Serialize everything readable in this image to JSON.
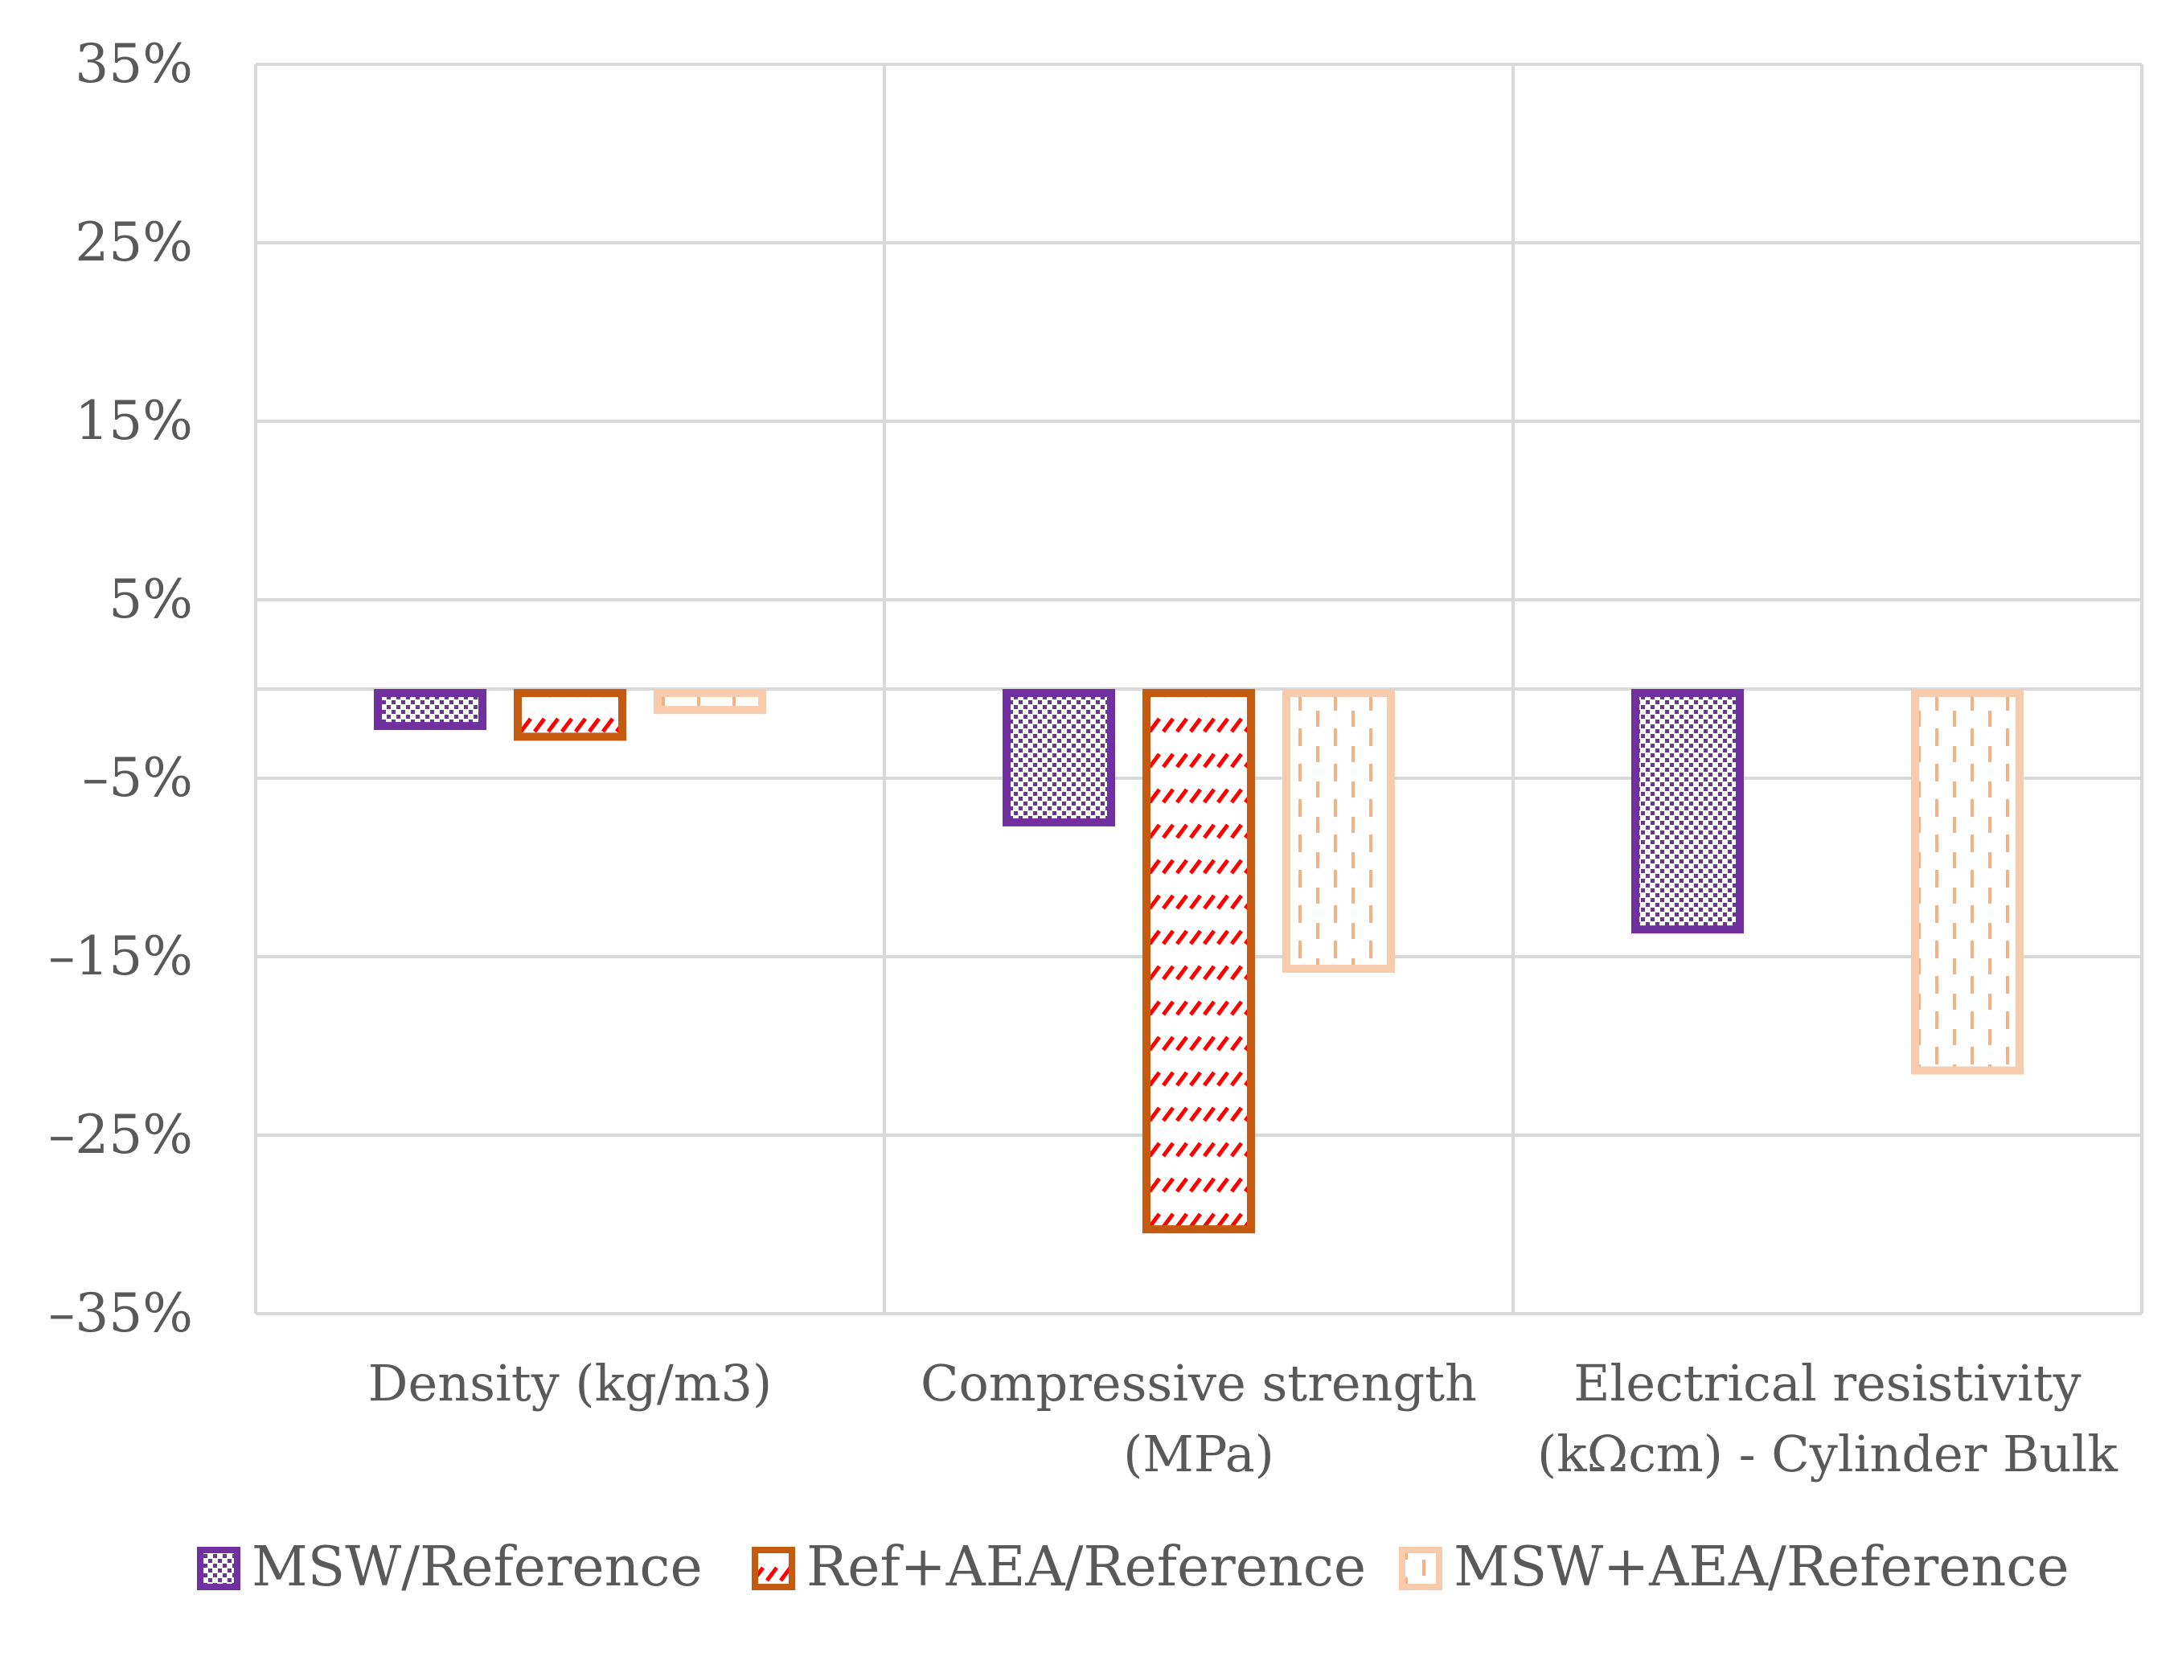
{
  "chart_data": {
    "type": "bar",
    "title": "",
    "xlabel": "",
    "ylabel": "",
    "ylim": [
      -35,
      35
    ],
    "yticks": [
      35,
      25,
      15,
      5,
      -5,
      -15,
      -25,
      -35
    ],
    "ytick_labels": [
      "35%",
      "25%",
      "15%",
      "5%",
      "–5%",
      "–15%",
      "–25%",
      "–35%"
    ],
    "grid": true,
    "legend_position": "bottom",
    "categories": [
      [
        "Density (kg/m3)"
      ],
      [
        "Compressive strength",
        "(MPa)"
      ],
      [
        "Electrical resistivity",
        "(kΩcm) - Cylinder Bulk"
      ]
    ],
    "series": [
      {
        "name": "MSW/Reference",
        "values": [
          -2.3,
          -7.7,
          -13.7
        ],
        "color": "#7030a0",
        "pattern": "dots"
      },
      {
        "name": "Ref+AEA/Reference",
        "values": [
          -2.9,
          -30.5,
          null
        ],
        "color": "#c55a11",
        "pattern": "diagonal-dash"
      },
      {
        "name": "MSW+AEA/Reference",
        "values": [
          -1.4,
          -15.9,
          -21.6
        ],
        "color": "#f8cbad",
        "pattern": "vertical-dash"
      }
    ]
  }
}
